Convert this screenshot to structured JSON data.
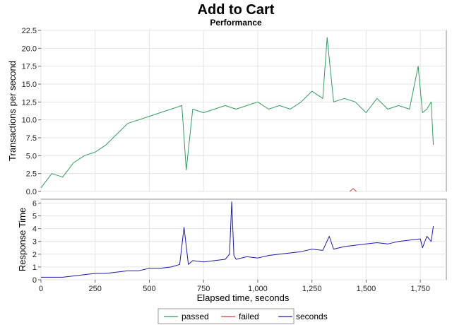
{
  "chart_data": [
    {
      "type": "line",
      "title": "Add to Cart",
      "subtitle": "Performance",
      "ylabel": "Transactions per second",
      "xlim": [
        0,
        1870
      ],
      "ylim": [
        0,
        22.5
      ],
      "yticks": [
        "0.0",
        "2.5",
        "5.0",
        "7.5",
        "10.0",
        "12.5",
        "15.0",
        "17.5",
        "20.0",
        "22.5"
      ],
      "grid": true,
      "series": [
        {
          "name": "passed",
          "color": "#2e9e5e",
          "x": [
            0,
            50,
            100,
            150,
            200,
            250,
            300,
            350,
            400,
            450,
            500,
            550,
            600,
            650,
            670,
            700,
            750,
            800,
            850,
            900,
            950,
            1000,
            1050,
            1100,
            1150,
            1200,
            1250,
            1300,
            1320,
            1350,
            1400,
            1450,
            1500,
            1550,
            1600,
            1650,
            1700,
            1740,
            1760,
            1780,
            1800,
            1810
          ],
          "y": [
            0.5,
            2.5,
            2.0,
            4.0,
            5.0,
            5.5,
            6.5,
            8.0,
            9.5,
            10.0,
            10.5,
            11.0,
            11.5,
            12.0,
            3.0,
            11.5,
            11.0,
            11.5,
            12.0,
            11.5,
            12.0,
            12.5,
            11.5,
            12.0,
            11.5,
            12.5,
            14.0,
            13.0,
            21.5,
            12.5,
            13.0,
            12.5,
            11.0,
            13.0,
            11.5,
            12.0,
            11.5,
            17.5,
            11.0,
            11.5,
            12.5,
            6.5
          ]
        },
        {
          "name": "failed",
          "color": "#d23c3c",
          "x": [
            1425,
            1440,
            1455
          ],
          "y": [
            0,
            0.4,
            0
          ]
        }
      ]
    },
    {
      "type": "line",
      "xlabel": "Elapsed time, seconds",
      "ylabel": "Response Time",
      "xlim": [
        0,
        1870
      ],
      "ylim": [
        0,
        6.3
      ],
      "yticks": [
        "0",
        "1",
        "2",
        "3",
        "4",
        "5",
        "6"
      ],
      "xticks": [
        "0",
        "250",
        "500",
        "750",
        "1,000",
        "1,250",
        "1,500",
        "1,750"
      ],
      "xtick_values": [
        0,
        250,
        500,
        750,
        1000,
        1250,
        1500,
        1750
      ],
      "grid": true,
      "series": [
        {
          "name": "seconds",
          "color": "#1a1ab0",
          "x": [
            0,
            100,
            150,
            200,
            250,
            300,
            350,
            400,
            450,
            500,
            550,
            600,
            640,
            660,
            680,
            700,
            750,
            800,
            850,
            870,
            880,
            890,
            900,
            950,
            1000,
            1050,
            1100,
            1150,
            1200,
            1250,
            1300,
            1330,
            1350,
            1400,
            1450,
            1500,
            1550,
            1600,
            1650,
            1700,
            1750,
            1760,
            1780,
            1800,
            1810
          ],
          "y": [
            0.2,
            0.2,
            0.3,
            0.4,
            0.5,
            0.5,
            0.6,
            0.7,
            0.7,
            0.9,
            0.9,
            1.0,
            1.2,
            4.1,
            1.2,
            1.5,
            1.4,
            1.5,
            1.6,
            2.0,
            6.1,
            1.9,
            1.6,
            1.8,
            1.7,
            1.9,
            2.0,
            2.1,
            2.2,
            2.4,
            2.3,
            3.4,
            2.4,
            2.6,
            2.7,
            2.8,
            2.9,
            2.8,
            3.0,
            3.1,
            3.2,
            2.5,
            3.4,
            3.0,
            4.2
          ]
        }
      ]
    }
  ],
  "legend": [
    {
      "label": "passed",
      "color": "#2e9e5e"
    },
    {
      "label": "failed",
      "color": "#d23c3c"
    },
    {
      "label": "seconds",
      "color": "#1a1ab0"
    }
  ]
}
